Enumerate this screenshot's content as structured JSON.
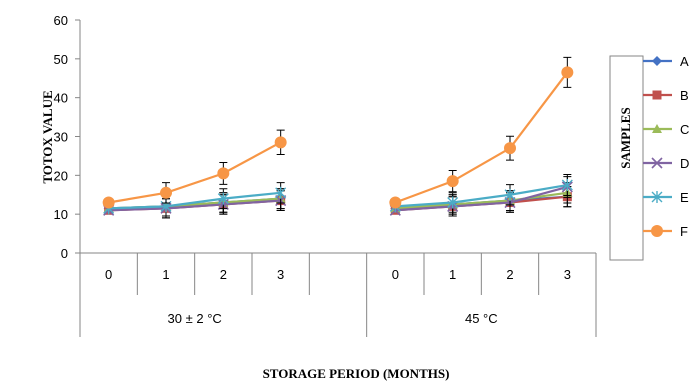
{
  "chart_data": {
    "type": "line",
    "ylabel": "TOTOX VALUE",
    "xlabel": "STORAGE PERIOD (MONTHS)",
    "ylim": [
      0,
      60
    ],
    "y_ticks": [
      0,
      10,
      20,
      30,
      40,
      50,
      60
    ],
    "groups": [
      {
        "label": "30 ± 2 °C",
        "months": [
          "0",
          "1",
          "2",
          "3"
        ]
      },
      {
        "label": "45 °C",
        "months": [
          "0",
          "1",
          "2",
          "3"
        ]
      }
    ],
    "legend_title": "SAMPLES",
    "legend_position": "right",
    "grid": false,
    "error_bars": true,
    "series": [
      {
        "name": "A",
        "color": "#4472C4",
        "marker": "diamond",
        "group_values": [
          [
            11.5,
            12.0,
            13.0,
            14.0
          ],
          [
            11.5,
            12.5,
            13.5,
            14.5
          ]
        ]
      },
      {
        "name": "B",
        "color": "#C0504D",
        "marker": "square",
        "group_values": [
          [
            11.0,
            11.5,
            12.5,
            13.5
          ],
          [
            11.0,
            12.0,
            13.0,
            14.5
          ]
        ]
      },
      {
        "name": "C",
        "color": "#9BBB59",
        "marker": "triangle",
        "group_values": [
          [
            11.5,
            12.0,
            13.0,
            14.0
          ],
          [
            11.5,
            12.5,
            13.5,
            15.5
          ]
        ]
      },
      {
        "name": "D",
        "color": "#8064A2",
        "marker": "x",
        "group_values": [
          [
            11.0,
            11.5,
            12.5,
            13.5
          ],
          [
            11.0,
            12.0,
            13.0,
            17.0
          ]
        ]
      },
      {
        "name": "E",
        "color": "#4BACC6",
        "marker": "star",
        "group_values": [
          [
            11.5,
            12.0,
            14.0,
            15.5
          ],
          [
            12.0,
            13.0,
            15.0,
            17.5
          ]
        ]
      },
      {
        "name": "F",
        "color": "#F79646",
        "marker": "circle",
        "group_values": [
          [
            13.0,
            15.5,
            20.5,
            28.5
          ],
          [
            13.0,
            18.5,
            27.0,
            46.5
          ]
        ]
      }
    ]
  }
}
